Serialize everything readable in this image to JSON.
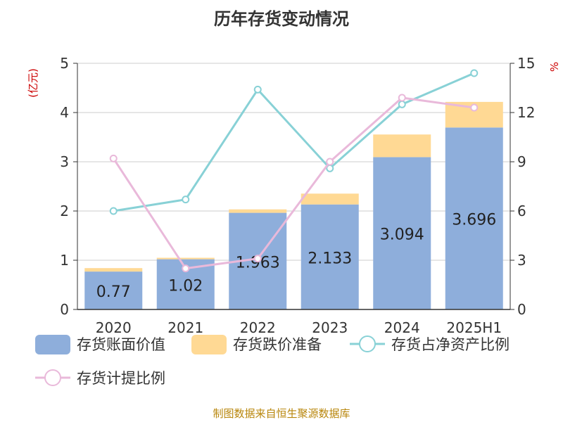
{
  "chart_data": {
    "type": "bar",
    "title": "历年存货变动情况",
    "categories": [
      "2020",
      "2021",
      "2022",
      "2023",
      "2024",
      "2025H1"
    ],
    "y_left_unit": "(亿元)",
    "y_right_unit": "%",
    "ylim_left": [
      0,
      5
    ],
    "yticks_left": [
      "0",
      "1",
      "2",
      "3",
      "4",
      "5"
    ],
    "ylim_right": [
      0,
      15
    ],
    "yticks_right": [
      "0",
      "3",
      "6",
      "9",
      "12",
      "15"
    ],
    "grid": true,
    "legend_position": "bottom",
    "bar_series": [
      {
        "name": "存货账面价值",
        "color": "#8eaedb",
        "values": [
          0.77,
          1.02,
          1.963,
          2.133,
          3.094,
          3.696
        ],
        "labels": [
          "0.77",
          "1.02",
          "1.963",
          "2.133",
          "3.094",
          "3.696"
        ]
      },
      {
        "name": "存货跌价准备",
        "color": "#ffd994",
        "values": [
          0.07,
          0.03,
          0.07,
          0.22,
          0.46,
          0.52
        ]
      }
    ],
    "line_series": [
      {
        "name": "存货占净资产比例",
        "color": "#88d1d6",
        "values": [
          6.0,
          6.7,
          13.4,
          8.6,
          12.5,
          14.4
        ]
      },
      {
        "name": "存货计提比例",
        "color": "#e9b9da",
        "values": [
          9.2,
          2.5,
          3.1,
          9.0,
          12.9,
          12.3
        ]
      }
    ]
  },
  "source": "制图数据来自恒生聚源数据库",
  "colors": {
    "grid": "#cccccc",
    "axis": "#333333"
  }
}
